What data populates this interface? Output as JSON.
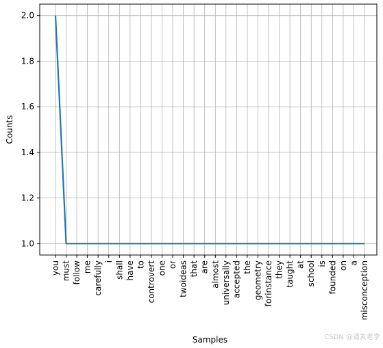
{
  "chart_data": {
    "type": "line",
    "xlabel": "Samples",
    "ylabel": "Counts",
    "categories": [
      "you",
      "must",
      "follow",
      "me",
      "carefully",
      "i",
      "shall",
      "have",
      "to",
      "controvert",
      "one",
      "or",
      "twoideas",
      "that",
      "are",
      "almost",
      "universally",
      "accepted",
      "the",
      "geometry",
      "forinstance",
      "they",
      "taught",
      "at",
      "school",
      "is",
      "founded",
      "on",
      "a",
      "misconception"
    ],
    "values": [
      2,
      1,
      1,
      1,
      1,
      1,
      1,
      1,
      1,
      1,
      1,
      1,
      1,
      1,
      1,
      1,
      1,
      1,
      1,
      1,
      1,
      1,
      1,
      1,
      1,
      1,
      1,
      1,
      1,
      1
    ],
    "ylim": [
      0.95,
      2.05
    ],
    "yticks": [
      1.0,
      1.2,
      1.4,
      1.6,
      1.8,
      2.0
    ],
    "ytick_labels": [
      "1.0",
      "1.2",
      "1.4",
      "1.6",
      "1.8",
      "2.0"
    ],
    "grid": true,
    "line_color": "#1f77b4",
    "grid_color": "#b0b0b0"
  },
  "watermark": "CSDN @道友老李"
}
